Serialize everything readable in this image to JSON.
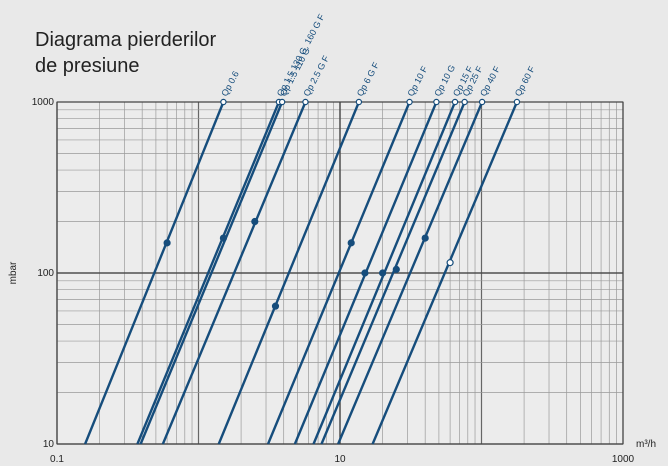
{
  "chart_data": {
    "type": "loglines",
    "title": [
      "Diagrama pierderilor",
      "de presiune"
    ],
    "ylabel": "mbar",
    "xlabel": "m³/h",
    "log_x": true,
    "log_y": true,
    "grid": true,
    "xlim": [
      0.1,
      1000
    ],
    "ylim": [
      10,
      1000
    ],
    "xticks": [
      0.1,
      10,
      1000
    ],
    "yticks": [
      10,
      100,
      1000
    ],
    "color": "#164d7c",
    "series": [
      {
        "name": "Qp 0.6",
        "x": [
          0.158,
          1.5
        ],
        "values": [
          10,
          1000
        ],
        "point": {
          "x": 0.6,
          "y": 150,
          "filled": true
        }
      },
      {
        "name": "Qp 1.5 130 G, 160 G F",
        "x": [
          0.37,
          3.7
        ],
        "values": [
          10,
          1000
        ],
        "point": {
          "x": 1.5,
          "y": 160,
          "filled": true
        }
      },
      {
        "name": "Qp 1.5 110 G",
        "x": [
          0.39,
          3.9
        ],
        "values": [
          10,
          1000
        ]
      },
      {
        "name": "Qp 2.5 G F",
        "x": [
          0.56,
          5.7
        ],
        "values": [
          10,
          1000
        ],
        "point": {
          "x": 2.5,
          "y": 200,
          "filled": true
        }
      },
      {
        "name": "Qp 6 G F",
        "x": [
          1.39,
          13.6
        ],
        "values": [
          10,
          1000
        ],
        "point": {
          "x": 3.5,
          "y": 64,
          "filled": true
        }
      },
      {
        "name": "Qp 10 F",
        "x": [
          3.1,
          31
        ],
        "values": [
          10,
          1000
        ],
        "point": {
          "x": 12,
          "y": 150,
          "filled": true
        }
      },
      {
        "name": "Qp 10 G",
        "x": [
          4.8,
          48
        ],
        "values": [
          10,
          1000
        ],
        "point": {
          "x": 15,
          "y": 100,
          "filled": true
        }
      },
      {
        "name": "Qp 15 F",
        "x": [
          6.5,
          65
        ],
        "values": [
          10,
          1000
        ],
        "point": {
          "x": 20,
          "y": 100,
          "filled": true
        }
      },
      {
        "name": "Qp 25 F",
        "x": [
          7.4,
          76
        ],
        "values": [
          10,
          1000
        ],
        "point": {
          "x": 25,
          "y": 105,
          "filled": true
        }
      },
      {
        "name": "Qp 40 F",
        "x": [
          9.7,
          101
        ],
        "values": [
          10,
          1000
        ],
        "point": {
          "x": 40,
          "y": 160,
          "filled": true
        }
      },
      {
        "name": "Qp 60 F",
        "x": [
          17,
          178
        ],
        "values": [
          10,
          1000
        ],
        "point": {
          "x": 60,
          "y": 115,
          "filled": false
        }
      }
    ]
  }
}
